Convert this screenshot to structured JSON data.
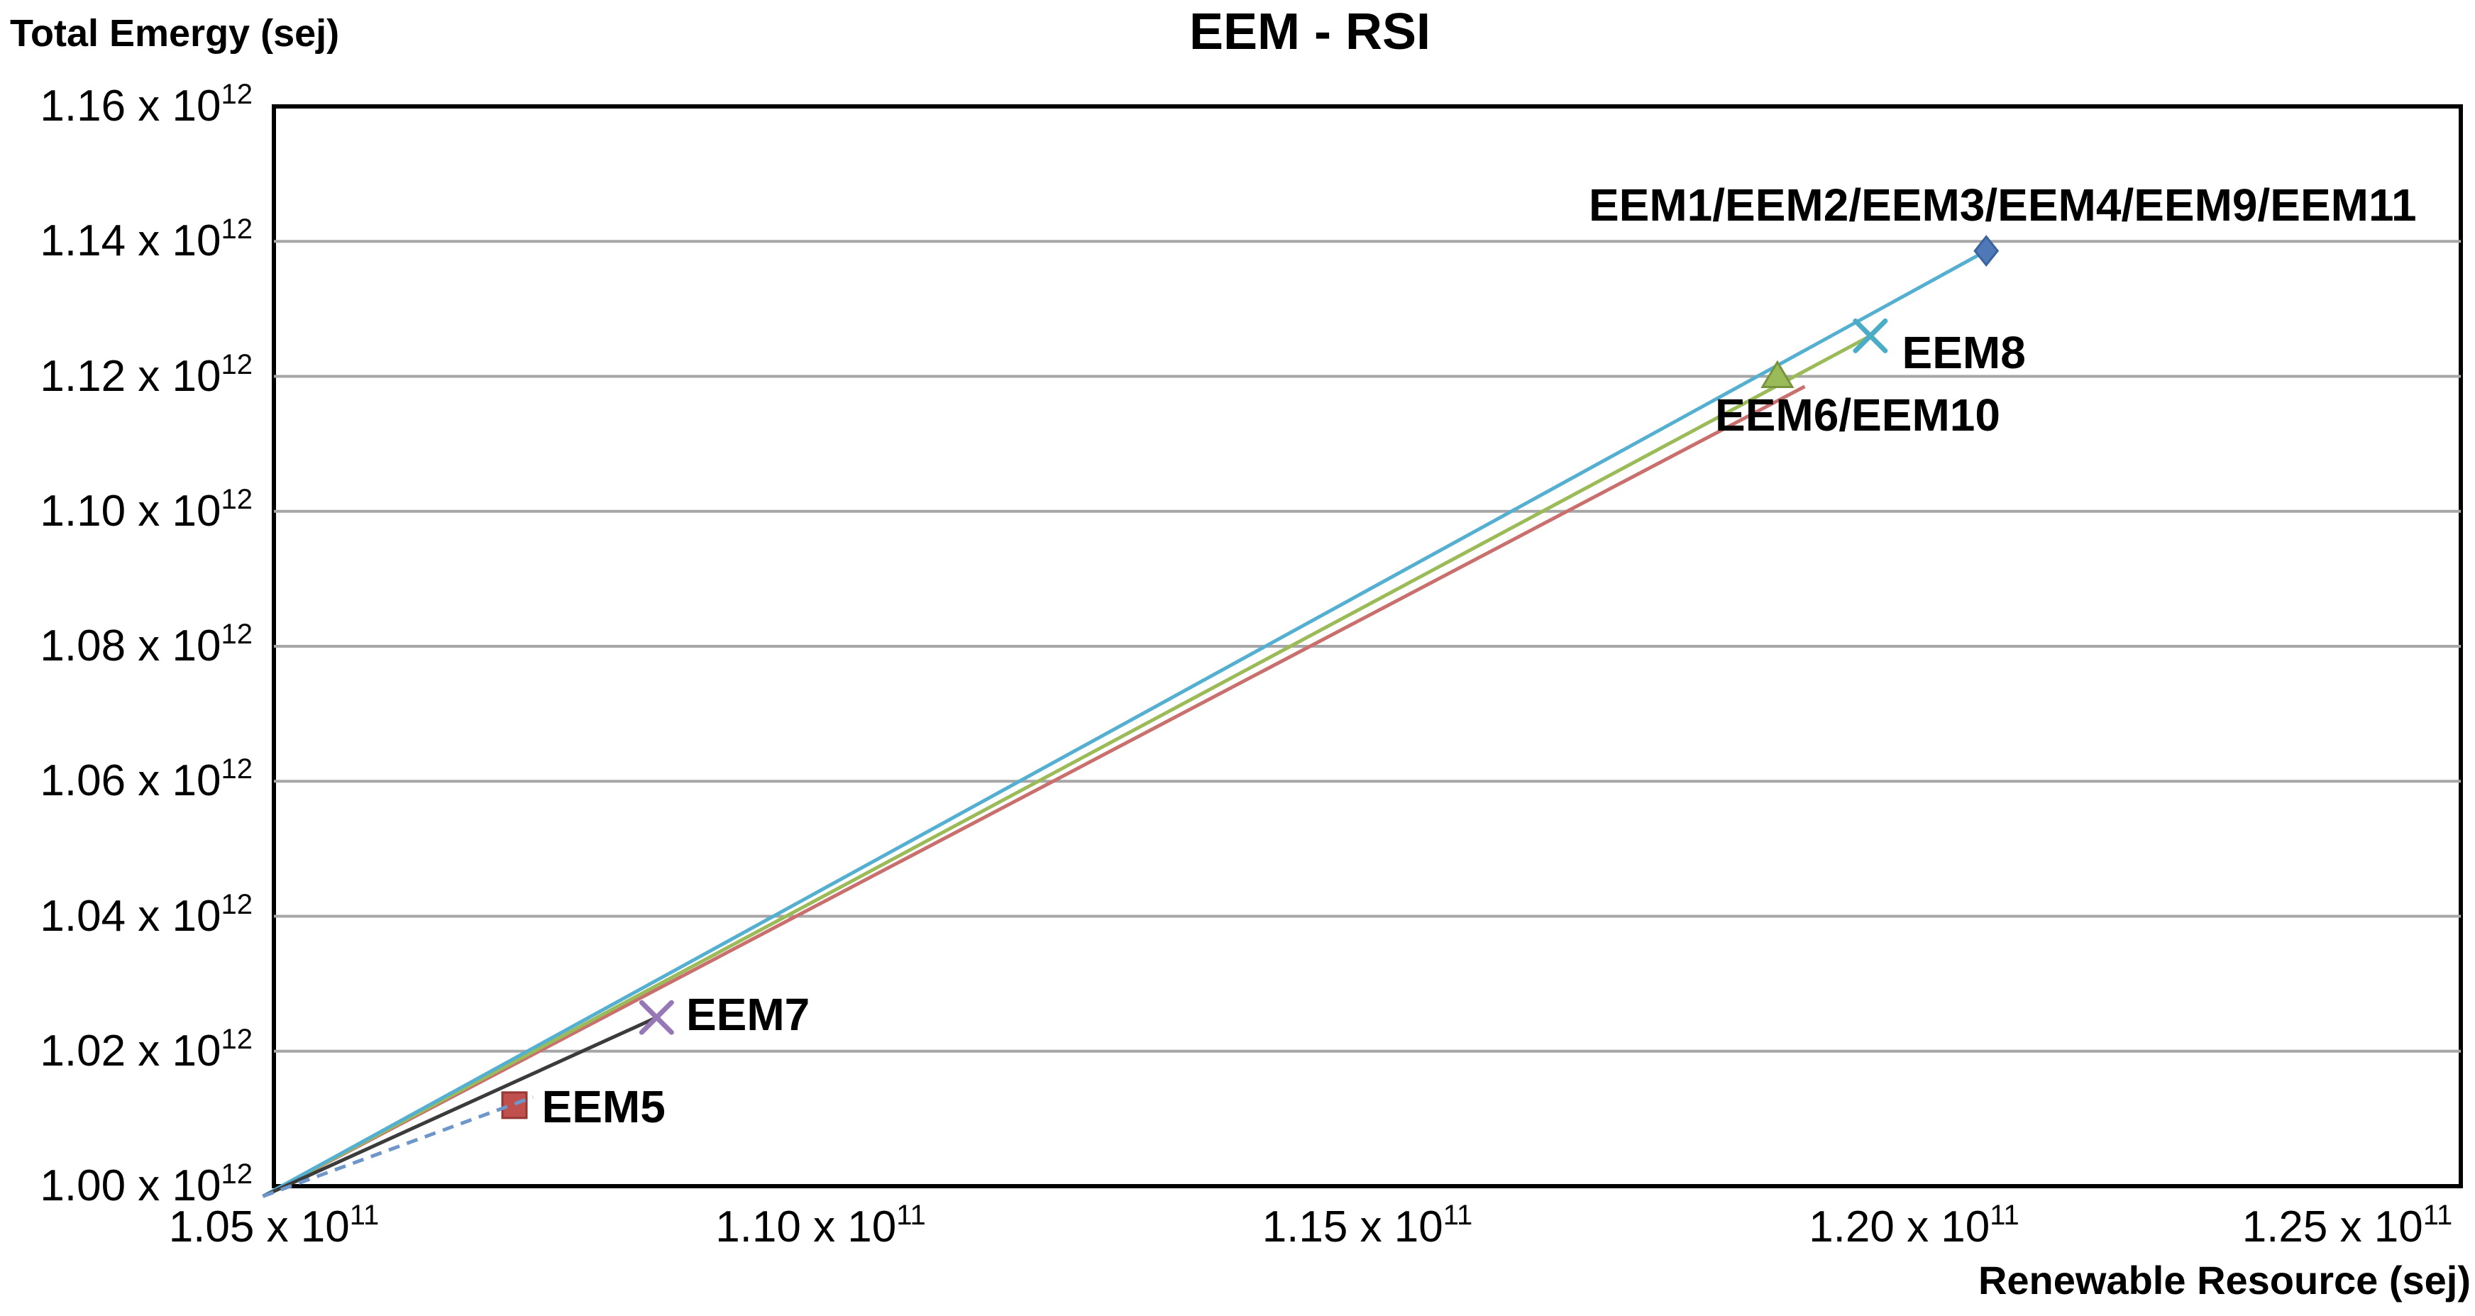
{
  "title": "EEM - RSI",
  "y_axis_title": "Total Emergy (sej)",
  "x_axis_title": "Renewable Resource (sej)",
  "chart_data": {
    "type": "scatter-line",
    "title": "EEM - RSI",
    "xlabel": "Renewable Resource (sej)",
    "ylabel": "Total Emergy (sej)",
    "x_units": "x 10^11 sej",
    "y_units": "x 10^12 sej",
    "xlim": [
      1.05,
      1.25
    ],
    "ylim": [
      1.0,
      1.16
    ],
    "grid": "horizontal-only",
    "gridline_color": "#A6A6A6",
    "border_color": "#000000",
    "x_ticks": [
      {
        "value": 1.05,
        "base": "1.05 x 10",
        "exp": "11"
      },
      {
        "value": 1.1,
        "base": "1.10 x 10",
        "exp": "11"
      },
      {
        "value": 1.15,
        "base": "1.15 x 10",
        "exp": "11"
      },
      {
        "value": 1.2,
        "base": "1.20 x 10",
        "exp": "11"
      },
      {
        "value": 1.25,
        "base": "1.25 x 10",
        "exp": "11"
      }
    ],
    "y_ticks": [
      {
        "value": 1.0,
        "base": "1.00 x 10",
        "exp": "12"
      },
      {
        "value": 1.02,
        "base": "1.02 x 10",
        "exp": "12"
      },
      {
        "value": 1.04,
        "base": "1.04 x 10",
        "exp": "12"
      },
      {
        "value": 1.06,
        "base": "1.06 x 10",
        "exp": "12"
      },
      {
        "value": 1.08,
        "base": "1.08 x 10",
        "exp": "12"
      },
      {
        "value": 1.1,
        "base": "1.10 x 10",
        "exp": "12"
      },
      {
        "value": 1.12,
        "base": "1.12 x 10",
        "exp": "12"
      },
      {
        "value": 1.14,
        "base": "1.14 x 10",
        "exp": "12"
      },
      {
        "value": 1.16,
        "base": "1.16 x 10",
        "exp": "12"
      }
    ],
    "series": [
      {
        "name": "EEM1/EEM2/EEM3/EEM4/EEM9/EEM11",
        "start": [
          1.049,
          0.9985
        ],
        "end": [
          1.2066,
          1.1386
        ],
        "line_color": "#55AFD0",
        "line_style": "solid",
        "marker": "diamond",
        "marker_color": "#4E79B6",
        "marker_edge": "#38639E",
        "label": {
          "text": "EEM1/EEM2/EEM3/EEM4/EEM9/EEM11",
          "at": [
            1.2081,
            1.1454
          ],
          "align": "center"
        }
      },
      {
        "name": "EEM8",
        "start": [
          1.049,
          0.9985
        ],
        "end": [
          1.196,
          1.126
        ],
        "line_color": "#9BBB59",
        "line_style": "solid",
        "marker": "x",
        "marker_color": "#4BACC6",
        "label": {
          "text": "EEM8",
          "at": [
            1.1989,
            1.1235
          ],
          "align": "left"
        }
      },
      {
        "name": "EEM6/EEM10",
        "start": [
          1.049,
          0.9985
        ],
        "end": [
          1.1875,
          1.12
        ],
        "line_end": [
          1.19,
          1.1185
        ],
        "line_color": "#C9706E",
        "line_style": "solid",
        "marker": "triangle",
        "marker_color": "#9BBB59",
        "marker_edge": "#77933C",
        "label": {
          "text": "EEM6/EEM10",
          "at": [
            1.1818,
            1.1143
          ],
          "align": "left"
        }
      },
      {
        "name": "EEM7",
        "start": [
          1.049,
          0.9985
        ],
        "end": [
          1.085,
          1.025
        ],
        "line_color": "#3B3B3B",
        "line_style": "solid",
        "marker": "x",
        "marker_color": "#9678B6",
        "label": {
          "text": "EEM7",
          "at": [
            1.0877,
            1.0254
          ],
          "align": "left"
        }
      },
      {
        "name": "EEM5",
        "start": [
          1.049,
          0.9985
        ],
        "end": [
          1.072,
          1.012
        ],
        "line_end": [
          1.0737,
          1.0132
        ],
        "line_color": "#6E96C8",
        "line_style": "dashed",
        "marker": "square",
        "marker_color": "#C0504D",
        "marker_edge": "#953735",
        "label": {
          "text": "EEM5",
          "at": [
            1.0745,
            1.0118
          ],
          "align": "left"
        }
      }
    ]
  }
}
